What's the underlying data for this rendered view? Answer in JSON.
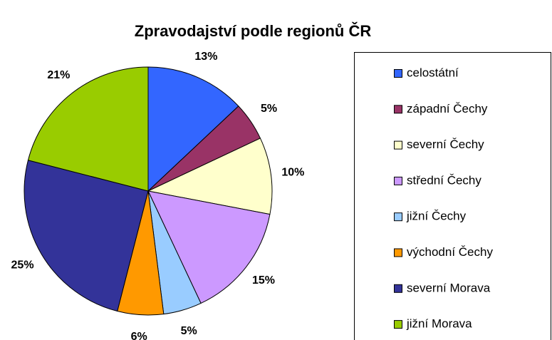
{
  "chart_data": {
    "type": "pie",
    "title": "Zpravodajství podle regionů ČR",
    "categories": [
      "celostátní",
      "západní Čechy",
      "severní Čechy",
      "střední Čechy",
      "jižní Čechy",
      "východní Čechy",
      "severní Morava",
      "jižní Morava"
    ],
    "values": [
      13,
      5,
      10,
      15,
      5,
      6,
      25,
      21
    ],
    "value_labels": [
      "13%",
      "5%",
      "10%",
      "15%",
      "5%",
      "6%",
      "25%",
      "21%"
    ],
    "colors": [
      "#3366ff",
      "#993366",
      "#ffffcc",
      "#cc99ff",
      "#99ccff",
      "#ff9900",
      "#333399",
      "#99cc00"
    ],
    "legend": "right"
  }
}
